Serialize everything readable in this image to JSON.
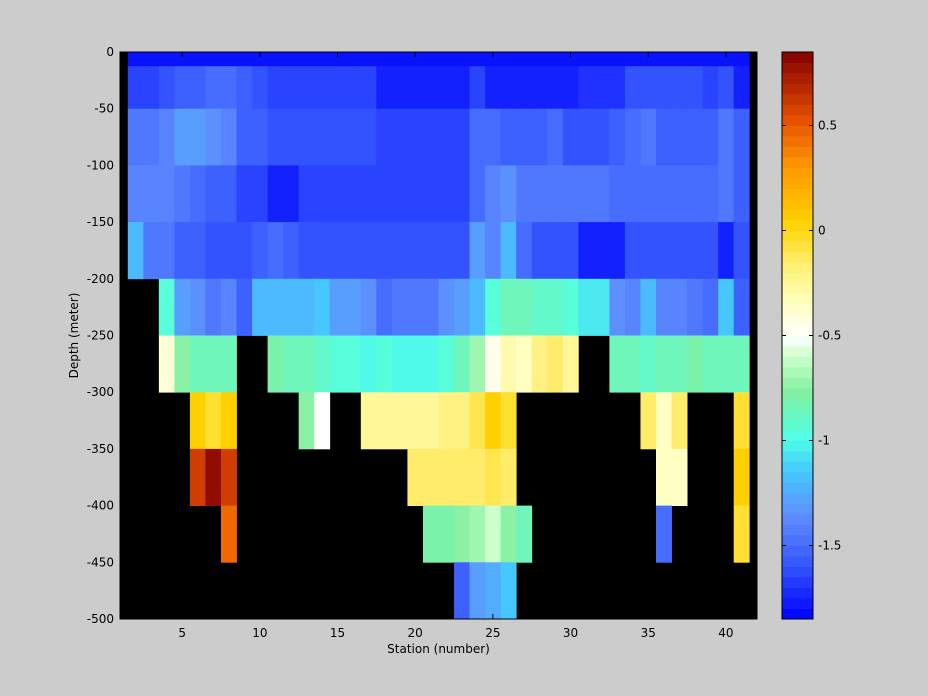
{
  "chart_data": {
    "type": "heatmap",
    "title": "",
    "xlabel": "Station (number)",
    "ylabel": "Depth (meter)",
    "xlim": [
      1,
      42
    ],
    "ylim": [
      -500,
      0
    ],
    "xticks": [
      5,
      10,
      15,
      20,
      25,
      30,
      35,
      40
    ],
    "yticks": [
      0,
      -50,
      -100,
      -150,
      -200,
      -250,
      -300,
      -350,
      -400,
      -450,
      -500
    ],
    "x_stations": [
      2,
      3,
      4,
      5,
      6,
      7,
      8,
      9,
      10,
      11,
      12,
      13,
      14,
      15,
      16,
      17,
      18,
      19,
      20,
      21,
      22,
      23,
      24,
      25,
      26,
      27,
      28,
      29,
      30,
      31,
      32,
      33,
      34,
      35,
      36,
      37,
      38,
      39,
      40,
      41
    ],
    "depth_levels": [
      0,
      -25,
      -75,
      -125,
      -175,
      -225,
      -275,
      -325,
      -375,
      -425,
      -475
    ],
    "nodata_color": "#000000",
    "colorbar": {
      "clim": [
        -1.85,
        0.85
      ],
      "ticks": [
        0.5,
        0,
        -0.5,
        -1,
        -1.5
      ],
      "colormap": "jet-with-white-center"
    },
    "values": [
      [
        -1.8,
        -1.8,
        -1.8,
        -1.8,
        -1.8,
        -1.8,
        -1.8,
        -1.8,
        -1.8,
        -1.8,
        -1.8,
        -1.8,
        -1.8,
        -1.8,
        -1.8,
        -1.8,
        -1.8,
        -1.8,
        -1.8,
        -1.8,
        -1.8,
        -1.8,
        -1.8,
        -1.8,
        -1.8,
        -1.8,
        -1.8,
        -1.8,
        -1.8,
        -1.8,
        -1.8,
        -1.8,
        -1.8,
        -1.8,
        -1.8,
        -1.8,
        -1.8,
        -1.8,
        -1.8,
        -1.8
      ],
      [
        -1.65,
        -1.65,
        -1.6,
        -1.55,
        -1.55,
        -1.5,
        -1.5,
        -1.55,
        -1.6,
        -1.65,
        -1.65,
        -1.65,
        -1.65,
        -1.65,
        -1.65,
        -1.65,
        -1.75,
        -1.75,
        -1.75,
        -1.75,
        -1.75,
        -1.75,
        -1.65,
        -1.75,
        -1.75,
        -1.75,
        -1.75,
        -1.75,
        -1.75,
        -1.7,
        -1.7,
        -1.7,
        -1.6,
        -1.6,
        -1.6,
        -1.6,
        -1.6,
        -1.65,
        -1.6,
        -1.75
      ],
      [
        -1.45,
        -1.45,
        -1.4,
        -1.3,
        -1.3,
        -1.35,
        -1.4,
        -1.55,
        -1.55,
        -1.6,
        -1.6,
        -1.6,
        -1.6,
        -1.6,
        -1.6,
        -1.6,
        -1.65,
        -1.65,
        -1.65,
        -1.65,
        -1.65,
        -1.65,
        -1.5,
        -1.5,
        -1.55,
        -1.55,
        -1.55,
        -1.5,
        -1.6,
        -1.6,
        -1.6,
        -1.55,
        -1.5,
        -1.45,
        -1.55,
        -1.55,
        -1.55,
        -1.55,
        -1.45,
        -1.55
      ],
      [
        -1.4,
        -1.4,
        -1.4,
        -1.45,
        -1.5,
        -1.55,
        -1.55,
        -1.65,
        -1.65,
        -1.75,
        -1.75,
        -1.65,
        -1.65,
        -1.65,
        -1.65,
        -1.65,
        -1.65,
        -1.65,
        -1.65,
        -1.65,
        -1.65,
        -1.65,
        -1.5,
        -1.4,
        -1.35,
        -1.45,
        -1.45,
        -1.45,
        -1.45,
        -1.45,
        -1.45,
        -1.5,
        -1.5,
        -1.5,
        -1.5,
        -1.5,
        -1.5,
        -1.5,
        -1.45,
        -1.55
      ],
      [
        -1.2,
        -1.45,
        -1.45,
        -1.55,
        -1.55,
        -1.6,
        -1.6,
        -1.6,
        -1.55,
        -1.5,
        -1.55,
        -1.6,
        -1.6,
        -1.6,
        -1.6,
        -1.6,
        -1.6,
        -1.6,
        -1.6,
        -1.6,
        -1.6,
        -1.6,
        -1.3,
        -1.4,
        -1.2,
        -1.5,
        -1.6,
        -1.6,
        -1.6,
        -1.75,
        -1.75,
        -1.75,
        -1.6,
        -1.6,
        -1.6,
        -1.6,
        -1.6,
        -1.6,
        -1.75,
        -1.6
      ],
      [
        null,
        null,
        -0.95,
        -1.3,
        -1.35,
        -1.45,
        -1.4,
        -1.55,
        -1.2,
        -1.2,
        -1.2,
        -1.2,
        -1.15,
        -1.3,
        -1.3,
        -1.35,
        -1.5,
        -1.45,
        -1.45,
        -1.45,
        -1.35,
        -1.3,
        -1.2,
        -0.95,
        -0.85,
        -0.85,
        -0.9,
        -0.9,
        -0.95,
        -1.05,
        -1.05,
        -1.35,
        -1.4,
        -1.2,
        -1.4,
        -1.4,
        -1.45,
        -1.5,
        -1.15,
        -1.55
      ],
      [
        null,
        null,
        -0.4,
        -0.75,
        -0.85,
        -0.85,
        -0.85,
        null,
        null,
        -0.8,
        -0.85,
        -0.85,
        -0.9,
        -0.95,
        -0.95,
        -1.0,
        -0.95,
        -1.0,
        -1.0,
        -1.0,
        -0.95,
        -0.85,
        -0.7,
        -0.45,
        -0.3,
        -0.35,
        -0.2,
        -0.15,
        -0.25,
        null,
        null,
        -0.85,
        -0.85,
        -0.9,
        -0.85,
        -0.85,
        -0.8,
        -0.85,
        -0.85,
        -0.85
      ],
      [
        null,
        null,
        null,
        null,
        0.05,
        -0.05,
        0.05,
        null,
        null,
        null,
        null,
        -0.75,
        -0.5,
        null,
        null,
        -0.25,
        -0.25,
        -0.25,
        -0.25,
        -0.25,
        -0.2,
        -0.2,
        -0.1,
        0.05,
        -0.05,
        null,
        null,
        null,
        null,
        null,
        null,
        null,
        null,
        -0.15,
        -0.35,
        -0.15,
        null,
        null,
        null,
        -0.05
      ],
      [
        null,
        null,
        null,
        null,
        0.6,
        0.8,
        0.6,
        null,
        null,
        null,
        null,
        null,
        null,
        null,
        null,
        null,
        null,
        null,
        -0.15,
        -0.15,
        -0.15,
        -0.15,
        -0.15,
        -0.1,
        -0.15,
        null,
        null,
        null,
        null,
        null,
        null,
        null,
        null,
        null,
        -0.35,
        -0.35,
        null,
        null,
        null,
        0.05
      ],
      [
        null,
        null,
        null,
        null,
        null,
        null,
        0.45,
        null,
        null,
        null,
        null,
        null,
        null,
        null,
        null,
        null,
        null,
        null,
        null,
        -0.8,
        -0.8,
        -0.75,
        -0.7,
        -0.6,
        -0.75,
        -0.85,
        null,
        null,
        null,
        null,
        null,
        null,
        null,
        null,
        -1.5,
        null,
        null,
        null,
        null,
        -0.05
      ],
      [
        null,
        null,
        null,
        null,
        null,
        null,
        null,
        null,
        null,
        null,
        null,
        null,
        null,
        null,
        null,
        null,
        null,
        null,
        null,
        null,
        null,
        -1.55,
        -1.3,
        -1.25,
        -1.15,
        null,
        null,
        null,
        null,
        null,
        null,
        null,
        null,
        null,
        null,
        null,
        null,
        null,
        null,
        null
      ]
    ]
  }
}
